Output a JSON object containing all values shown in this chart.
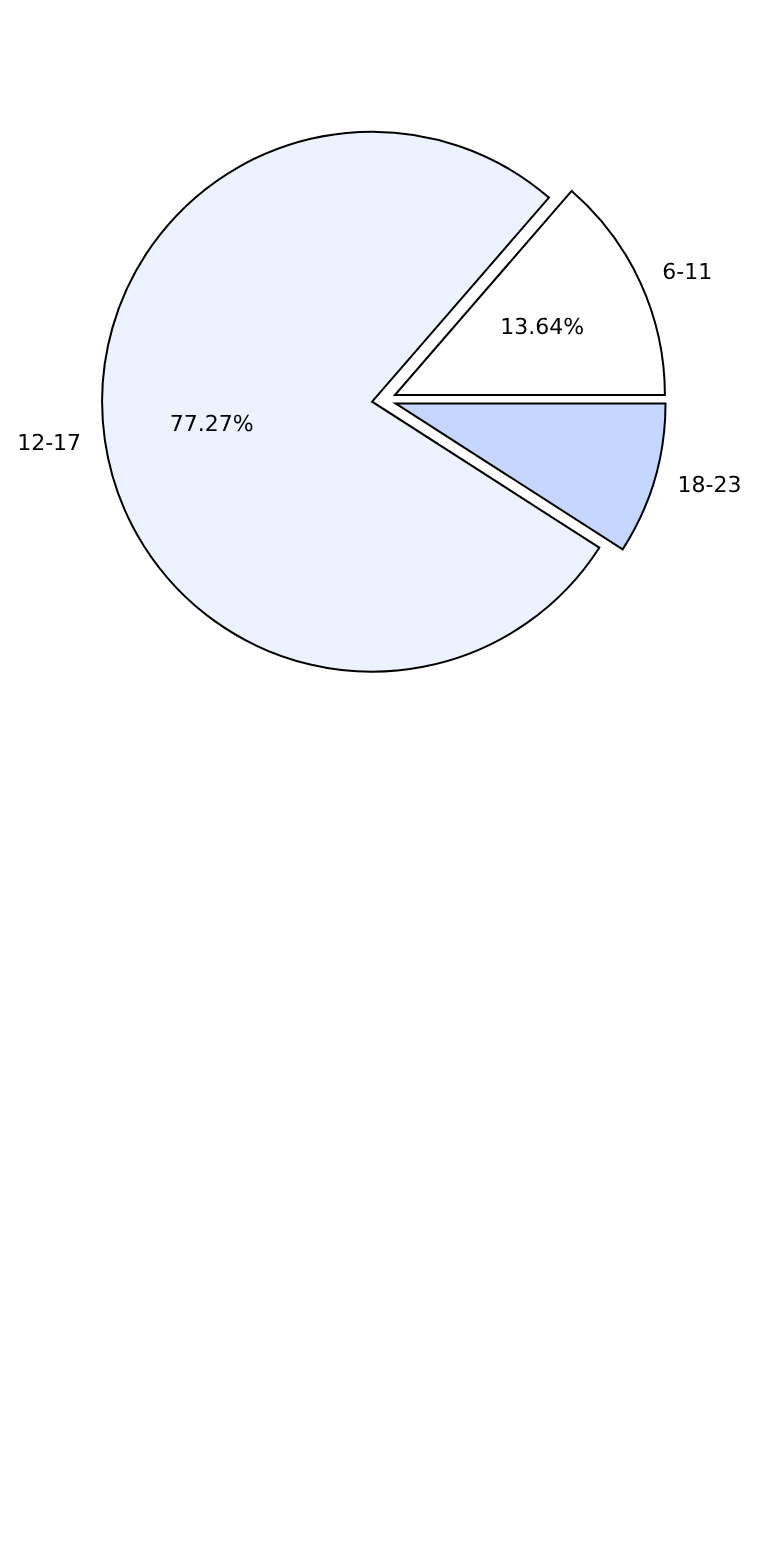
{
  "chart_data": {
    "type": "pie",
    "categories": [
      "6-11",
      "12-17",
      "18-23"
    ],
    "values": [
      13.64,
      77.27,
      9.09
    ],
    "colors": [
      "#ffffff",
      "#ecf2ff",
      "#c5d7ff"
    ],
    "value_labels": [
      "13.64%",
      "77.27%",
      null
    ],
    "legend": false
  }
}
